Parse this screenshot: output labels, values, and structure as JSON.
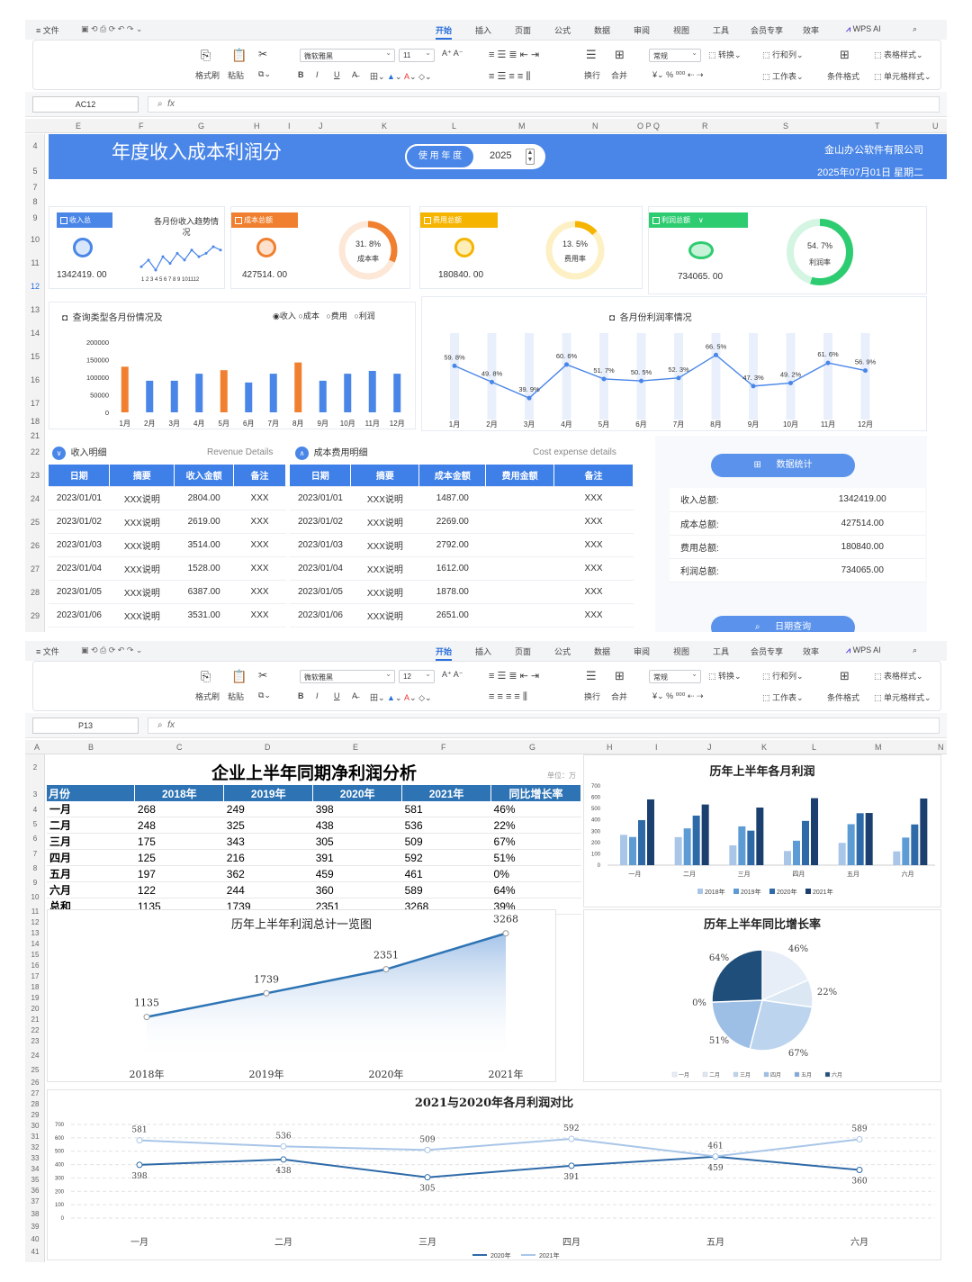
{
  "ribbon": {
    "menu": "≡ 文件",
    "tabs": [
      "开始",
      "插入",
      "页面",
      "公式",
      "数据",
      "审阅",
      "视图",
      "工具",
      "会员专享",
      "效率",
      "WPS AI"
    ],
    "format_painter": "格式刷",
    "paste": "粘贴",
    "bold": "B",
    "italic": "I",
    "underline": "U",
    "strike": "A̶",
    "wrap": "换行",
    "merge": "合并",
    "number_format": "常规",
    "convert": "转换",
    "rows_cols": "行和列",
    "worksheet": "工作表",
    "cond_format": "条件格式",
    "table_style": "表格样式",
    "cell_style": "单元格样式",
    "percent": "%",
    "currency": "¥"
  },
  "sheet1": {
    "font": "微软雅黑",
    "font_size": "11",
    "cell_ref": "AC12",
    "fx": "fx",
    "columns": [
      "E",
      "F",
      "G",
      "H",
      "I",
      "J",
      "K",
      "L",
      "M",
      "N",
      "O P Q",
      "R",
      "S",
      "T",
      "U"
    ],
    "rows": [
      "4",
      "5",
      "7",
      "8",
      "9",
      "10",
      "11",
      "12",
      "13",
      "14",
      "15",
      "16",
      "17",
      "18",
      "21",
      "22",
      "23",
      "24",
      "25",
      "26",
      "27",
      "28",
      "29"
    ],
    "title": "年度收入成本利润分",
    "year_label": "使 用 年 度",
    "year": "2025",
    "company": "金山办公软件有限公司",
    "date": "2025年07月01日   星期二",
    "kpi": {
      "income_tag": "收入总",
      "income_value": "1342419. 00",
      "trend_title": "各月份收入趋势情况",
      "trend_axis": "1 2 3 4 5 6 7 8 9 101112",
      "cost_tag": "成本总额",
      "cost_value": "427514. 00",
      "cost_rate": "31. 8%",
      "cost_rate_label": "成本率",
      "cost_rate_num": 0.318,
      "fee_tag": "费用总额",
      "fee_value": "180840. 00",
      "fee_rate": "13. 5%",
      "fee_rate_label": "费用率",
      "fee_rate_num": 0.135,
      "profit_tag": "利润总额",
      "profit_value": "734065. 00",
      "profit_rate": "54. 7%",
      "profit_rate_label": "利润率",
      "profit_rate_num": 0.547,
      "colors": {
        "blue": "#4a86e8",
        "orange": "#f08030",
        "yellow": "#f5b400",
        "green": "#2ecc71"
      }
    },
    "monthly_title": "查询类型各月份情况及",
    "radios": [
      "收入",
      "成本",
      "费用",
      "利润"
    ],
    "margin_title": "各月份利润率情况",
    "details_title": "收入明细",
    "details_en": "Revenue Details",
    "cost_title": "成本费用明细",
    "cost_en": "Cost expense details",
    "income_headers": [
      "日期",
      "摘要",
      "收入金额",
      "备注"
    ],
    "income_rows": [
      [
        "2023/01/01",
        "XXX说明",
        "2804.00",
        "XXX"
      ],
      [
        "2023/01/02",
        "XXX说明",
        "2619.00",
        "XXX"
      ],
      [
        "2023/01/03",
        "XXX说明",
        "3514.00",
        "XXX"
      ],
      [
        "2023/01/04",
        "XXX说明",
        "1528.00",
        "XXX"
      ],
      [
        "2023/01/05",
        "XXX说明",
        "6387.00",
        "XXX"
      ],
      [
        "2023/01/06",
        "XXX说明",
        "3531.00",
        "XXX"
      ]
    ],
    "cost_headers": [
      "日期",
      "摘要",
      "成本金额",
      "费用金额",
      "备注"
    ],
    "cost_rows": [
      [
        "2023/01/01",
        "XXX说明",
        "1487.00",
        "",
        "XXX"
      ],
      [
        "2023/01/02",
        "XXX说明",
        "2269.00",
        "",
        "XXX"
      ],
      [
        "2023/01/03",
        "XXX说明",
        "2792.00",
        "",
        "XXX"
      ],
      [
        "2023/01/04",
        "XXX说明",
        "1612.00",
        "",
        "XXX"
      ],
      [
        "2023/01/05",
        "XXX说明",
        "1878.00",
        "",
        "XXX"
      ],
      [
        "2023/01/06",
        "XXX说明",
        "2651.00",
        "",
        "XXX"
      ]
    ],
    "stats_btn": "数据统计",
    "stats": [
      [
        "收入总额:",
        "1342419.00"
      ],
      [
        "成本总额:",
        "427514.00"
      ],
      [
        "费用总额:",
        "180840.00"
      ],
      [
        "利润总额:",
        "734065.00"
      ]
    ],
    "date_btn": "日期查询"
  },
  "sheet2": {
    "font": "微软雅黑",
    "font_size": "12",
    "cell_ref": "P13",
    "fx": "fx",
    "columns": [
      "A",
      "B",
      "C",
      "D",
      "E",
      "F",
      "G",
      "H",
      "I",
      "J",
      "K",
      "L",
      "M",
      "N"
    ],
    "title": "企业上半年同期净利润分析",
    "unit": "单位：万",
    "headers": [
      "月份",
      "2018年",
      "2019年",
      "2020年",
      "2021年",
      "同比增长率"
    ],
    "rows": [
      [
        "一月",
        "268",
        "249",
        "398",
        "581",
        "46%"
      ],
      [
        "二月",
        "248",
        "325",
        "438",
        "536",
        "22%"
      ],
      [
        "三月",
        "175",
        "343",
        "305",
        "509",
        "67%"
      ],
      [
        "四月",
        "125",
        "216",
        "391",
        "592",
        "51%"
      ],
      [
        "五月",
        "197",
        "362",
        "459",
        "461",
        "0%"
      ],
      [
        "六月",
        "122",
        "244",
        "360",
        "589",
        "64%"
      ],
      [
        "总和",
        "1135",
        "1739",
        "2351",
        "3268",
        "39%"
      ]
    ]
  },
  "chart_data": [
    {
      "type": "line",
      "title": "各月份收入趋势情况",
      "x": [
        "1",
        "2",
        "3",
        "4",
        "5",
        "6",
        "7",
        "8",
        "9",
        "10",
        "11",
        "12"
      ],
      "values": [
        5,
        7,
        4,
        8,
        6,
        9,
        7,
        10,
        8,
        9,
        11,
        10
      ]
    },
    {
      "type": "bar",
      "title": "查询类型各月份情况及",
      "categories": [
        "1月",
        "2月",
        "3月",
        "4月",
        "5月",
        "6月",
        "7月",
        "8月",
        "9月",
        "10月",
        "11月",
        "12月"
      ],
      "values": [
        130000,
        90000,
        90000,
        110000,
        120000,
        85000,
        110000,
        142000,
        90000,
        110000,
        118000,
        110000
      ],
      "bar_colors": [
        "#f08030",
        "#4a86e8",
        "#4a86e8",
        "#4a86e8",
        "#f08030",
        "#4a86e8",
        "#4a86e8",
        "#f08030",
        "#4a86e8",
        "#4a86e8",
        "#4a86e8",
        "#4a86e8"
      ],
      "yticks": [
        "200000",
        "150000",
        "100000",
        "50000",
        "0"
      ],
      "ylim": [
        0,
        200000
      ]
    },
    {
      "type": "line",
      "title": "各月份利润率情况",
      "categories": [
        "1月",
        "2月",
        "3月",
        "4月",
        "5月",
        "6月",
        "7月",
        "8月",
        "9月",
        "10月",
        "11月",
        "12月"
      ],
      "values": [
        59.8,
        49.8,
        39.9,
        60.6,
        51.7,
        50.5,
        52.3,
        66.5,
        47.3,
        49.2,
        61.6,
        56.9
      ],
      "labels": [
        "59. 8%",
        "49. 8%",
        "39. 9%",
        "60. 6%",
        "51. 7%",
        "50. 5%",
        "52. 3%",
        "66. 5%",
        "47. 3%",
        "49. 2%",
        "61. 6%",
        "56. 9%"
      ]
    },
    {
      "type": "bar",
      "title": "历年上半年各月利润",
      "categories": [
        "一月",
        "二月",
        "三月",
        "四月",
        "五月",
        "六月"
      ],
      "series": [
        {
          "name": "2018年",
          "values": [
            268,
            248,
            175,
            125,
            197,
            122
          ],
          "color": "#a9c6e8"
        },
        {
          "name": "2019年",
          "values": [
            249,
            325,
            343,
            216,
            362,
            244
          ],
          "color": "#5d9bd5"
        },
        {
          "name": "2020年",
          "values": [
            398,
            438,
            305,
            391,
            459,
            360
          ],
          "color": "#2e6aa8"
        },
        {
          "name": "2021年",
          "values": [
            581,
            536,
            509,
            592,
            461,
            589
          ],
          "color": "#1b3f6e"
        }
      ],
      "yticks": [
        "700",
        "600",
        "500",
        "400",
        "300",
        "200",
        "100",
        "0"
      ],
      "ylim": [
        0,
        700
      ]
    },
    {
      "type": "area",
      "title": "历年上半年利润总计一览图",
      "categories": [
        "2018年",
        "2019年",
        "2020年",
        "2021年"
      ],
      "values": [
        1135,
        1739,
        2351,
        3268
      ]
    },
    {
      "type": "pie",
      "title": "历年上半年同比增长率",
      "categories": [
        "一月",
        "二月",
        "三月",
        "四月",
        "五月",
        "六月"
      ],
      "values": [
        46,
        22,
        67,
        51,
        0,
        64
      ],
      "labels": [
        "46%",
        "22%",
        "67%",
        "51%",
        "0%",
        "64%"
      ],
      "colors": [
        "#e8eef7",
        "#dce7f4",
        "#bcd4ee",
        "#9dbfe6",
        "#7fa9dc",
        "#1f4e7a"
      ]
    },
    {
      "type": "line",
      "title": "2021与2020年各月利润对比",
      "categories": [
        "一月",
        "二月",
        "三月",
        "四月",
        "五月",
        "六月"
      ],
      "series": [
        {
          "name": "2020年",
          "values": [
            398,
            438,
            305,
            391,
            459,
            360
          ],
          "color": "#2e6aa8"
        },
        {
          "name": "2021年",
          "values": [
            581,
            536,
            509,
            592,
            461,
            589
          ],
          "color": "#a9c6e8"
        }
      ],
      "yticks": [
        "700",
        "600",
        "500",
        "400",
        "300",
        "200",
        "100",
        "0"
      ],
      "ylim": [
        0,
        700
      ]
    }
  ]
}
